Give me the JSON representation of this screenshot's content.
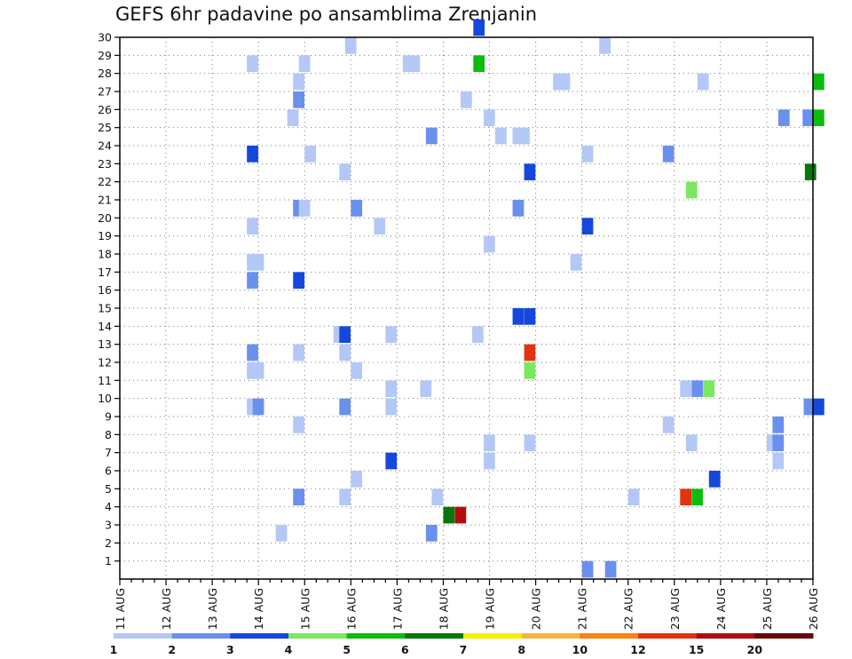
{
  "chart_data": {
    "type": "heatmap",
    "title": "GEFS 6hr padavine po ansamblima Zrenjanin",
    "x": {
      "unit": "6-hour steps",
      "start": "11 AUG 00Z",
      "tick_labels": [
        "11 AUG",
        "12 AUG",
        "13 AUG",
        "14 AUG",
        "15 AUG",
        "16 AUG",
        "17 AUG",
        "18 AUG",
        "19 AUG",
        "20 AUG",
        "21 AUG",
        "22 AUG",
        "23 AUG",
        "24 AUG",
        "25 AUG",
        "26 AUG"
      ]
    },
    "y": {
      "tick_labels": [
        "1",
        "2",
        "3",
        "4",
        "5",
        "6",
        "7",
        "8",
        "9",
        "10",
        "11",
        "12",
        "13",
        "14",
        "15",
        "16",
        "17",
        "18",
        "19",
        "20",
        "21",
        "22",
        "23",
        "24",
        "25",
        "26",
        "27",
        "28",
        "29",
        "30"
      ],
      "ylim": [
        0,
        30
      ]
    },
    "color_scale": {
      "thresholds": [
        "1",
        "2",
        "3",
        "4",
        "5",
        "6",
        "7",
        "8",
        "10",
        "12",
        "15",
        "20"
      ],
      "colors": [
        "#b3c8f5",
        "#6a90ee",
        "#1448dc",
        "#7ae860",
        "#0cbc0c",
        "#087608",
        "#f5f000",
        "#f9b240",
        "#f98312",
        "#e0350e",
        "#b00e0e",
        "#6a0606"
      ]
    },
    "cells": [
      [
        30,
        0,
        30.6,
        2
      ],
      [
        29,
        0,
        19.5,
        0
      ],
      [
        29,
        0,
        41.5,
        0
      ],
      [
        28,
        0,
        11,
        0
      ],
      [
        28,
        0,
        15.5,
        0
      ],
      [
        28,
        0,
        24.5,
        0
      ],
      [
        28,
        0,
        25,
        0
      ],
      [
        28,
        0,
        30.6,
        4
      ],
      [
        27,
        0,
        15,
        0
      ],
      [
        27,
        0,
        37.5,
        0
      ],
      [
        27,
        0,
        38,
        0
      ],
      [
        27,
        0,
        50,
        0
      ],
      [
        27,
        0,
        60,
        4
      ],
      [
        26,
        0,
        15,
        1
      ],
      [
        26,
        0,
        29.5,
        0
      ],
      [
        25,
        0,
        14.5,
        0
      ],
      [
        25,
        0,
        31.5,
        0
      ],
      [
        25,
        0,
        57,
        1
      ],
      [
        25,
        0,
        59.1,
        1
      ],
      [
        25,
        0,
        60,
        4
      ],
      [
        24,
        0,
        26.5,
        1
      ],
      [
        24,
        0,
        32.5,
        0
      ],
      [
        24,
        0,
        34,
        0
      ],
      [
        24,
        0,
        34.5,
        0
      ],
      [
        23,
        0,
        11,
        2
      ],
      [
        23,
        0,
        16,
        0
      ],
      [
        23,
        0,
        40,
        0
      ],
      [
        23,
        0,
        47,
        1
      ],
      [
        22,
        0,
        19,
        0
      ],
      [
        22,
        0,
        35,
        2
      ],
      [
        22,
        0,
        59.3,
        5
      ],
      [
        21,
        0,
        49,
        3
      ],
      [
        20,
        0,
        15,
        1
      ],
      [
        20,
        0,
        15.5,
        0
      ],
      [
        20,
        0,
        20,
        1
      ],
      [
        20,
        0,
        34,
        1
      ],
      [
        19,
        0,
        11,
        0
      ],
      [
        19,
        0,
        22,
        0
      ],
      [
        19,
        0,
        40,
        2
      ],
      [
        18,
        0,
        31.5,
        0
      ],
      [
        17,
        0,
        11,
        0
      ],
      [
        17,
        0,
        11.5,
        0
      ],
      [
        17,
        0,
        39,
        0
      ],
      [
        16,
        0,
        11,
        1
      ],
      [
        16,
        0,
        15,
        2
      ],
      [
        14,
        0,
        34,
        2
      ],
      [
        14,
        0,
        35,
        2
      ],
      [
        13,
        0,
        18.5,
        0
      ],
      [
        13,
        0,
        19,
        2
      ],
      [
        13,
        0,
        23,
        0
      ],
      [
        13,
        0,
        30.5,
        0
      ],
      [
        12,
        0,
        11,
        1
      ],
      [
        12,
        0,
        15,
        0
      ],
      [
        12,
        0,
        19,
        0
      ],
      [
        12,
        0,
        35,
        9
      ],
      [
        11,
        0,
        11,
        0
      ],
      [
        11,
        0,
        11.5,
        0
      ],
      [
        11,
        0,
        20,
        0
      ],
      [
        11,
        0,
        35,
        3
      ],
      [
        10,
        0,
        23,
        0
      ],
      [
        10,
        0,
        26,
        0
      ],
      [
        10,
        0,
        48.5,
        0
      ],
      [
        10,
        0,
        49.5,
        1
      ],
      [
        10,
        0,
        50.5,
        3
      ],
      [
        9,
        0,
        11,
        0
      ],
      [
        9,
        0,
        11.5,
        1
      ],
      [
        9,
        0,
        19,
        1
      ],
      [
        9,
        0,
        23,
        0
      ],
      [
        9,
        0,
        59.2,
        1
      ],
      [
        9,
        0,
        60,
        2
      ],
      [
        8,
        0,
        15,
        0
      ],
      [
        8,
        0,
        47,
        0
      ],
      [
        8,
        0,
        56.5,
        1
      ],
      [
        7,
        0,
        31.5,
        0
      ],
      [
        7,
        0,
        35,
        0
      ],
      [
        7,
        0,
        49,
        0
      ],
      [
        7,
        0,
        56,
        0
      ],
      [
        7,
        0,
        56.5,
        1
      ],
      [
        6,
        0,
        23,
        2
      ],
      [
        6,
        0,
        31.5,
        0
      ],
      [
        6,
        0,
        56.5,
        0
      ],
      [
        5,
        0,
        20,
        0
      ],
      [
        5,
        0,
        51,
        2
      ],
      [
        4,
        0,
        15,
        1
      ],
      [
        4,
        0,
        19,
        0
      ],
      [
        4,
        0,
        27,
        0
      ],
      [
        4,
        0,
        44,
        0
      ],
      [
        4,
        0,
        48.5,
        9
      ],
      [
        4,
        0,
        49.5,
        4
      ],
      [
        3,
        0,
        28,
        5
      ],
      [
        3,
        0,
        29,
        10
      ],
      [
        2,
        0,
        13.5,
        0
      ],
      [
        2,
        0,
        26.5,
        1
      ],
      [
        0,
        0,
        40,
        1
      ],
      [
        0,
        0,
        42,
        1
      ]
    ]
  }
}
